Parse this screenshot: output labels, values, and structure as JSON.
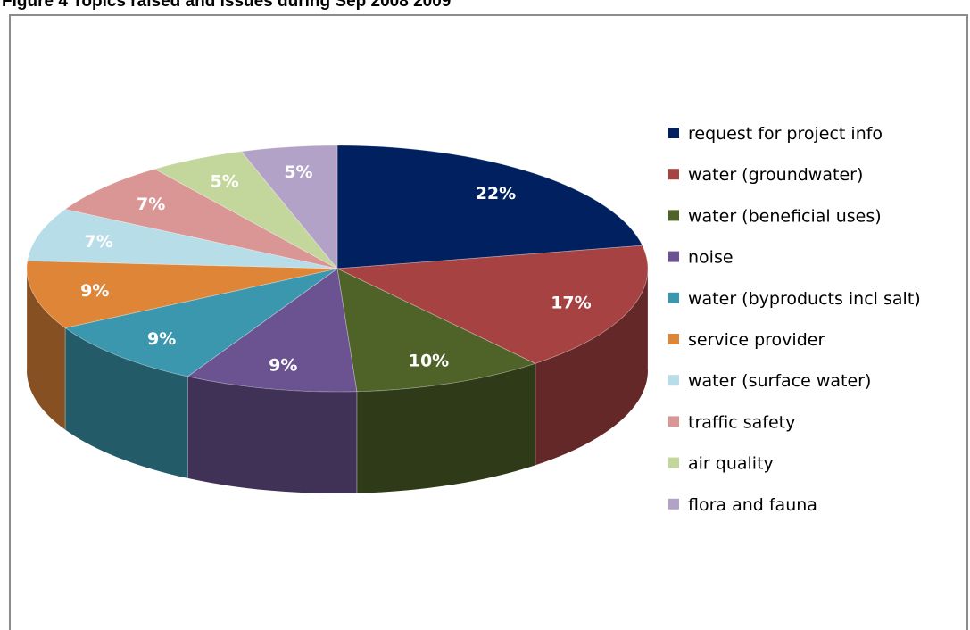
{
  "figure": {
    "caption": "Figure 4 Topics raised and issues during Sep 2008 2009"
  },
  "chart_data": {
    "type": "pie",
    "style": "3d-exploded-none",
    "title": "",
    "legend_position": "right",
    "slices": [
      {
        "label": "request for project info",
        "value": 22,
        "display": "22%",
        "color": "#002060"
      },
      {
        "label": "water (groundwater)",
        "value": 17,
        "display": "17%",
        "color": "#A64342"
      },
      {
        "label": "water (beneficial uses)",
        "value": 10,
        "display": "10%",
        "color": "#4F6228"
      },
      {
        "label": "noise",
        "value": 9,
        "display": "9%",
        "color": "#6B5290"
      },
      {
        "label": "water (byproducts incl salt)",
        "value": 9,
        "display": "9%",
        "color": "#3B97AE"
      },
      {
        "label": "service provider",
        "value": 9,
        "display": "9%",
        "color": "#DF8538"
      },
      {
        "label": "water (surface water)",
        "value": 7,
        "display": "7%",
        "color": "#B7DDE8"
      },
      {
        "label": "traffic safety",
        "value": 7,
        "display": "7%",
        "color": "#D99694"
      },
      {
        "label": "air quality",
        "value": 5,
        "display": "5%",
        "color": "#C3D69B"
      },
      {
        "label": "flora and fauna",
        "value": 5,
        "display": "5%",
        "color": "#B3A2C7"
      }
    ]
  }
}
